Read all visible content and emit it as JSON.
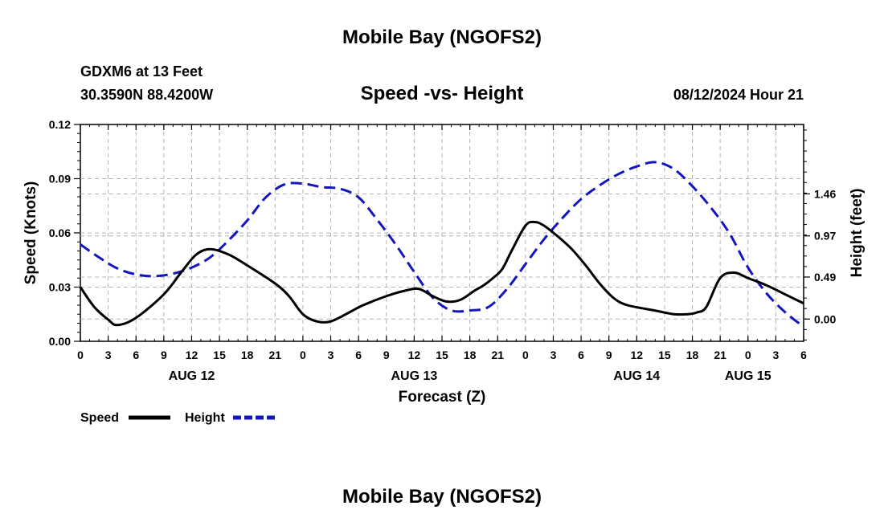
{
  "chart_data": {
    "type": "line",
    "title": "Mobile Bay (NGOFS2)",
    "footer_title": "Mobile Bay (NGOFS2)",
    "subtitle": "Speed -vs- Height",
    "station": "GDXM6 at 13 Feet",
    "location": "30.3590N  88.4200W",
    "timestamp": "08/12/2024 Hour 21",
    "xlabel": "Forecast (Z)",
    "ylabel_left": "Speed (Knots)",
    "ylabel_right": "Height (feet)",
    "x_range_hours": [
      0,
      78
    ],
    "x_ticks": [
      "0",
      "3",
      "6",
      "9",
      "12",
      "15",
      "18",
      "21",
      "0",
      "3",
      "6",
      "9",
      "12",
      "15",
      "18",
      "21",
      "0",
      "3",
      "6",
      "9",
      "12",
      "15",
      "18",
      "21",
      "0",
      "3",
      "6"
    ],
    "date_labels": [
      {
        "label": "AUG 12",
        "hour": 12
      },
      {
        "label": "AUG 13",
        "hour": 36
      },
      {
        "label": "AUG 14",
        "hour": 60
      },
      {
        "label": "AUG 15",
        "hour": 72
      }
    ],
    "ylim_left": [
      0,
      0.12
    ],
    "yticks_left": [
      "0.00",
      "0.03",
      "0.06",
      "0.09",
      "0.12"
    ],
    "ylim_right": [
      -0.26,
      2.27
    ],
    "yticks_right": [
      {
        "label": "0.00",
        "value": 0.0
      },
      {
        "label": "0.49",
        "value": 0.49
      },
      {
        "label": "0.97",
        "value": 0.97
      },
      {
        "label": "1.46",
        "value": 1.46
      }
    ],
    "legend": [
      {
        "label": "Speed",
        "color": "#000000",
        "style": "solid"
      },
      {
        "label": "Height",
        "color": "#1515c0",
        "style": "dashed"
      }
    ],
    "series": [
      {
        "name": "Speed",
        "axis": "left",
        "color": "#000000",
        "x": [
          0,
          1.5,
          3,
          4,
          6,
          9,
          11,
          12.5,
          14,
          16,
          18,
          21,
          22.5,
          24,
          25.5,
          27,
          29,
          30.5,
          33,
          35,
          36.5,
          38,
          39.5,
          41,
          42.5,
          43.5,
          44.5,
          45.5,
          46.5,
          48,
          49,
          50,
          51.5,
          53,
          54.5,
          56,
          57.5,
          59,
          62,
          64,
          65.5,
          66.5,
          67.5,
          69,
          70.5,
          72,
          74,
          76,
          78
        ],
        "values": [
          0.03,
          0.019,
          0.012,
          0.009,
          0.013,
          0.026,
          0.039,
          0.048,
          0.051,
          0.048,
          0.042,
          0.032,
          0.025,
          0.015,
          0.011,
          0.011,
          0.016,
          0.02,
          0.025,
          0.028,
          0.029,
          0.025,
          0.022,
          0.023,
          0.028,
          0.031,
          0.035,
          0.04,
          0.05,
          0.064,
          0.066,
          0.064,
          0.058,
          0.051,
          0.042,
          0.032,
          0.024,
          0.02,
          0.017,
          0.015,
          0.015,
          0.016,
          0.019,
          0.035,
          0.038,
          0.035,
          0.031,
          0.026,
          0.021
        ]
      },
      {
        "name": "Height",
        "axis": "right",
        "color": "#1515c0",
        "x": [
          0,
          2,
          4,
          6,
          8,
          10,
          12,
          14,
          16,
          18,
          20,
          22,
          24,
          26,
          28,
          30,
          32,
          34,
          36,
          38,
          40,
          42,
          44,
          46,
          48,
          50,
          52,
          54,
          56,
          58,
          60,
          62,
          64,
          66,
          68,
          70,
          72,
          74,
          76,
          78
        ],
        "values": [
          0.87,
          0.72,
          0.59,
          0.52,
          0.5,
          0.53,
          0.6,
          0.72,
          0.92,
          1.15,
          1.42,
          1.57,
          1.58,
          1.54,
          1.52,
          1.42,
          1.16,
          0.87,
          0.55,
          0.25,
          0.1,
          0.1,
          0.14,
          0.35,
          0.64,
          0.93,
          1.18,
          1.4,
          1.56,
          1.69,
          1.78,
          1.83,
          1.75,
          1.55,
          1.3,
          1.0,
          0.6,
          0.3,
          0.08,
          -0.09
        ]
      }
    ]
  }
}
